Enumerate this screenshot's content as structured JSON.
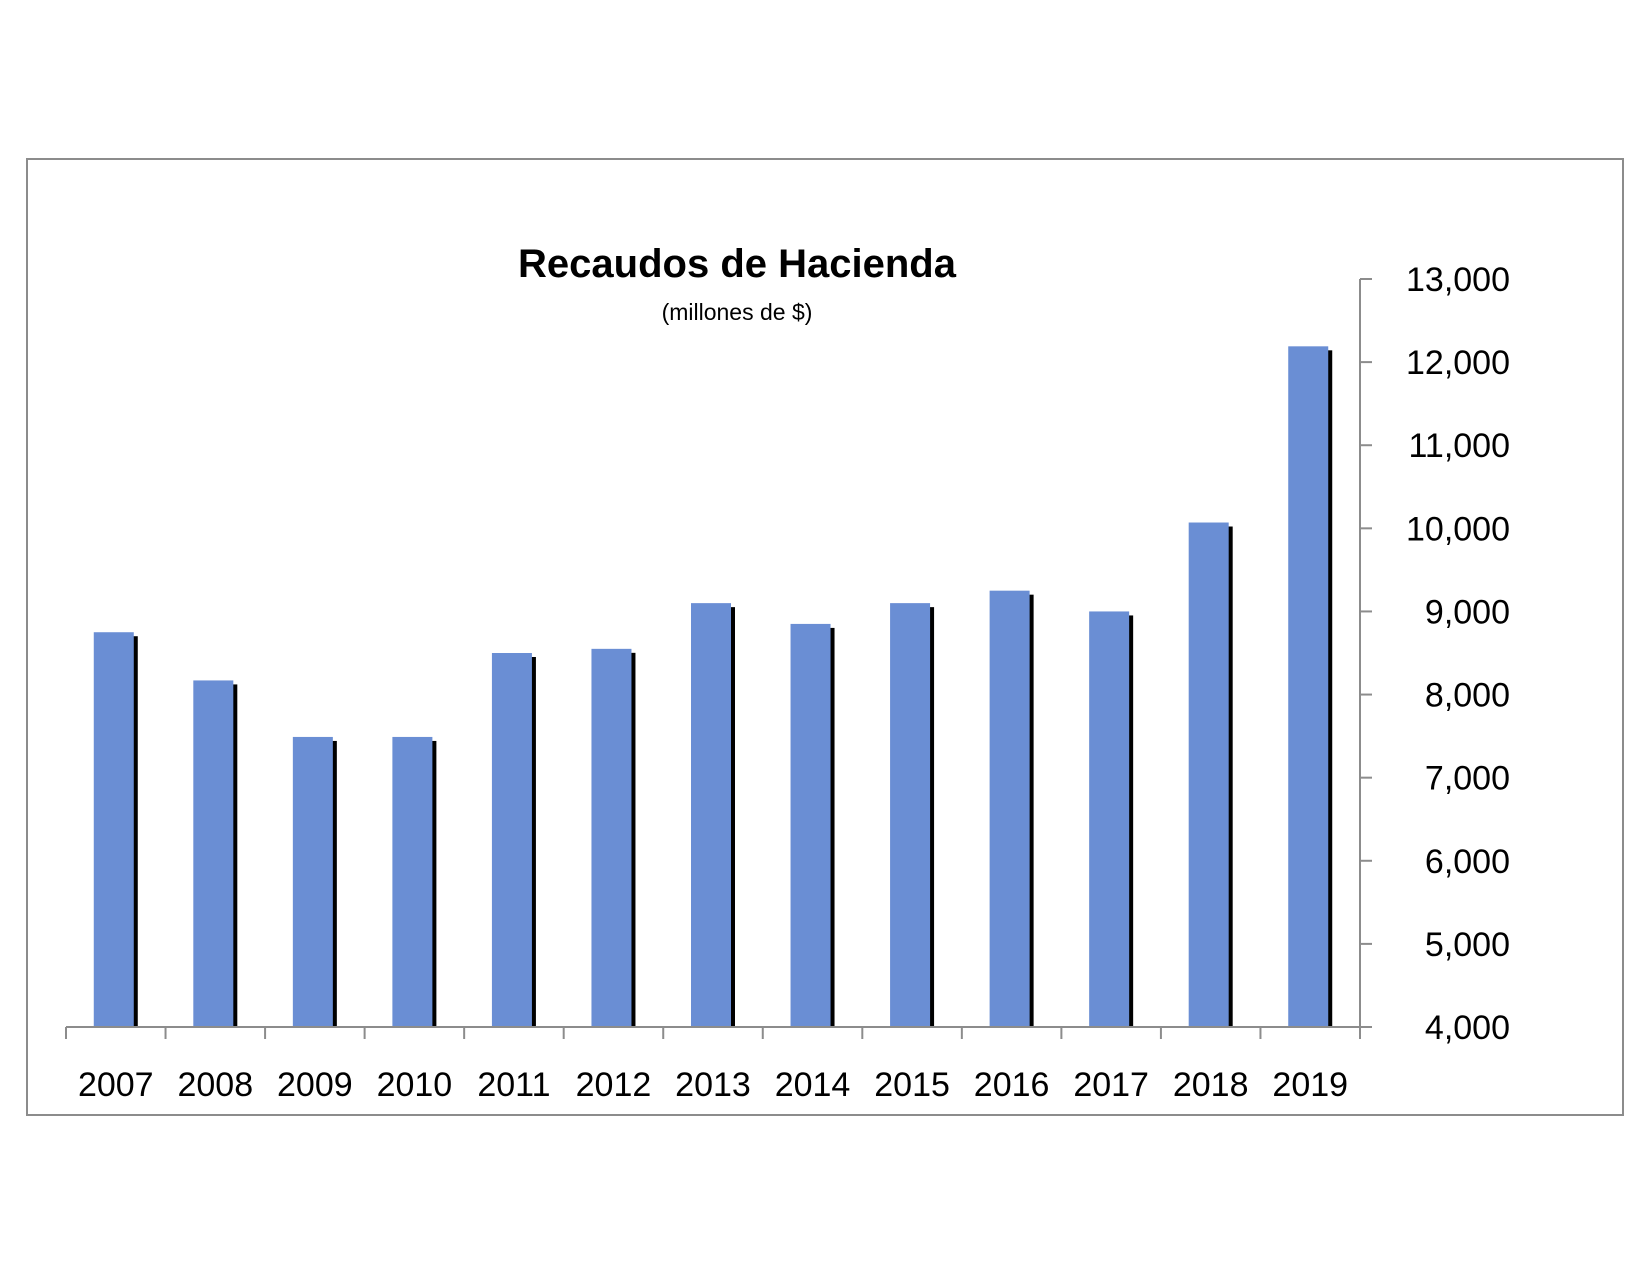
{
  "chart_data": {
    "type": "bar",
    "title": "Recaudos de Hacienda",
    "subtitle": "(millones de $)",
    "categories": [
      "2007",
      "2008",
      "2009",
      "2010",
      "2011",
      "2012",
      "2013",
      "2014",
      "2015",
      "2016",
      "2017",
      "2018",
      "2019"
    ],
    "values": [
      8750,
      8170,
      7490,
      7490,
      8500,
      8550,
      9100,
      8850,
      9100,
      9250,
      9000,
      10070,
      12190
    ],
    "ylim": [
      4000,
      13000
    ],
    "yticks": [
      4000,
      5000,
      6000,
      7000,
      8000,
      9000,
      10000,
      11000,
      12000,
      13000
    ],
    "ytick_labels": [
      "4,000",
      "5,000",
      "6,000",
      "7,000",
      "8,000",
      "9,000",
      "10,000",
      "11,000",
      "12,000",
      "13,000"
    ],
    "y_axis_side": "right",
    "grid": false,
    "legend": "none",
    "colors": {
      "bar": "#6a8ed4",
      "bar_shadow": "#000000",
      "axis": "#8c8c8c"
    }
  }
}
